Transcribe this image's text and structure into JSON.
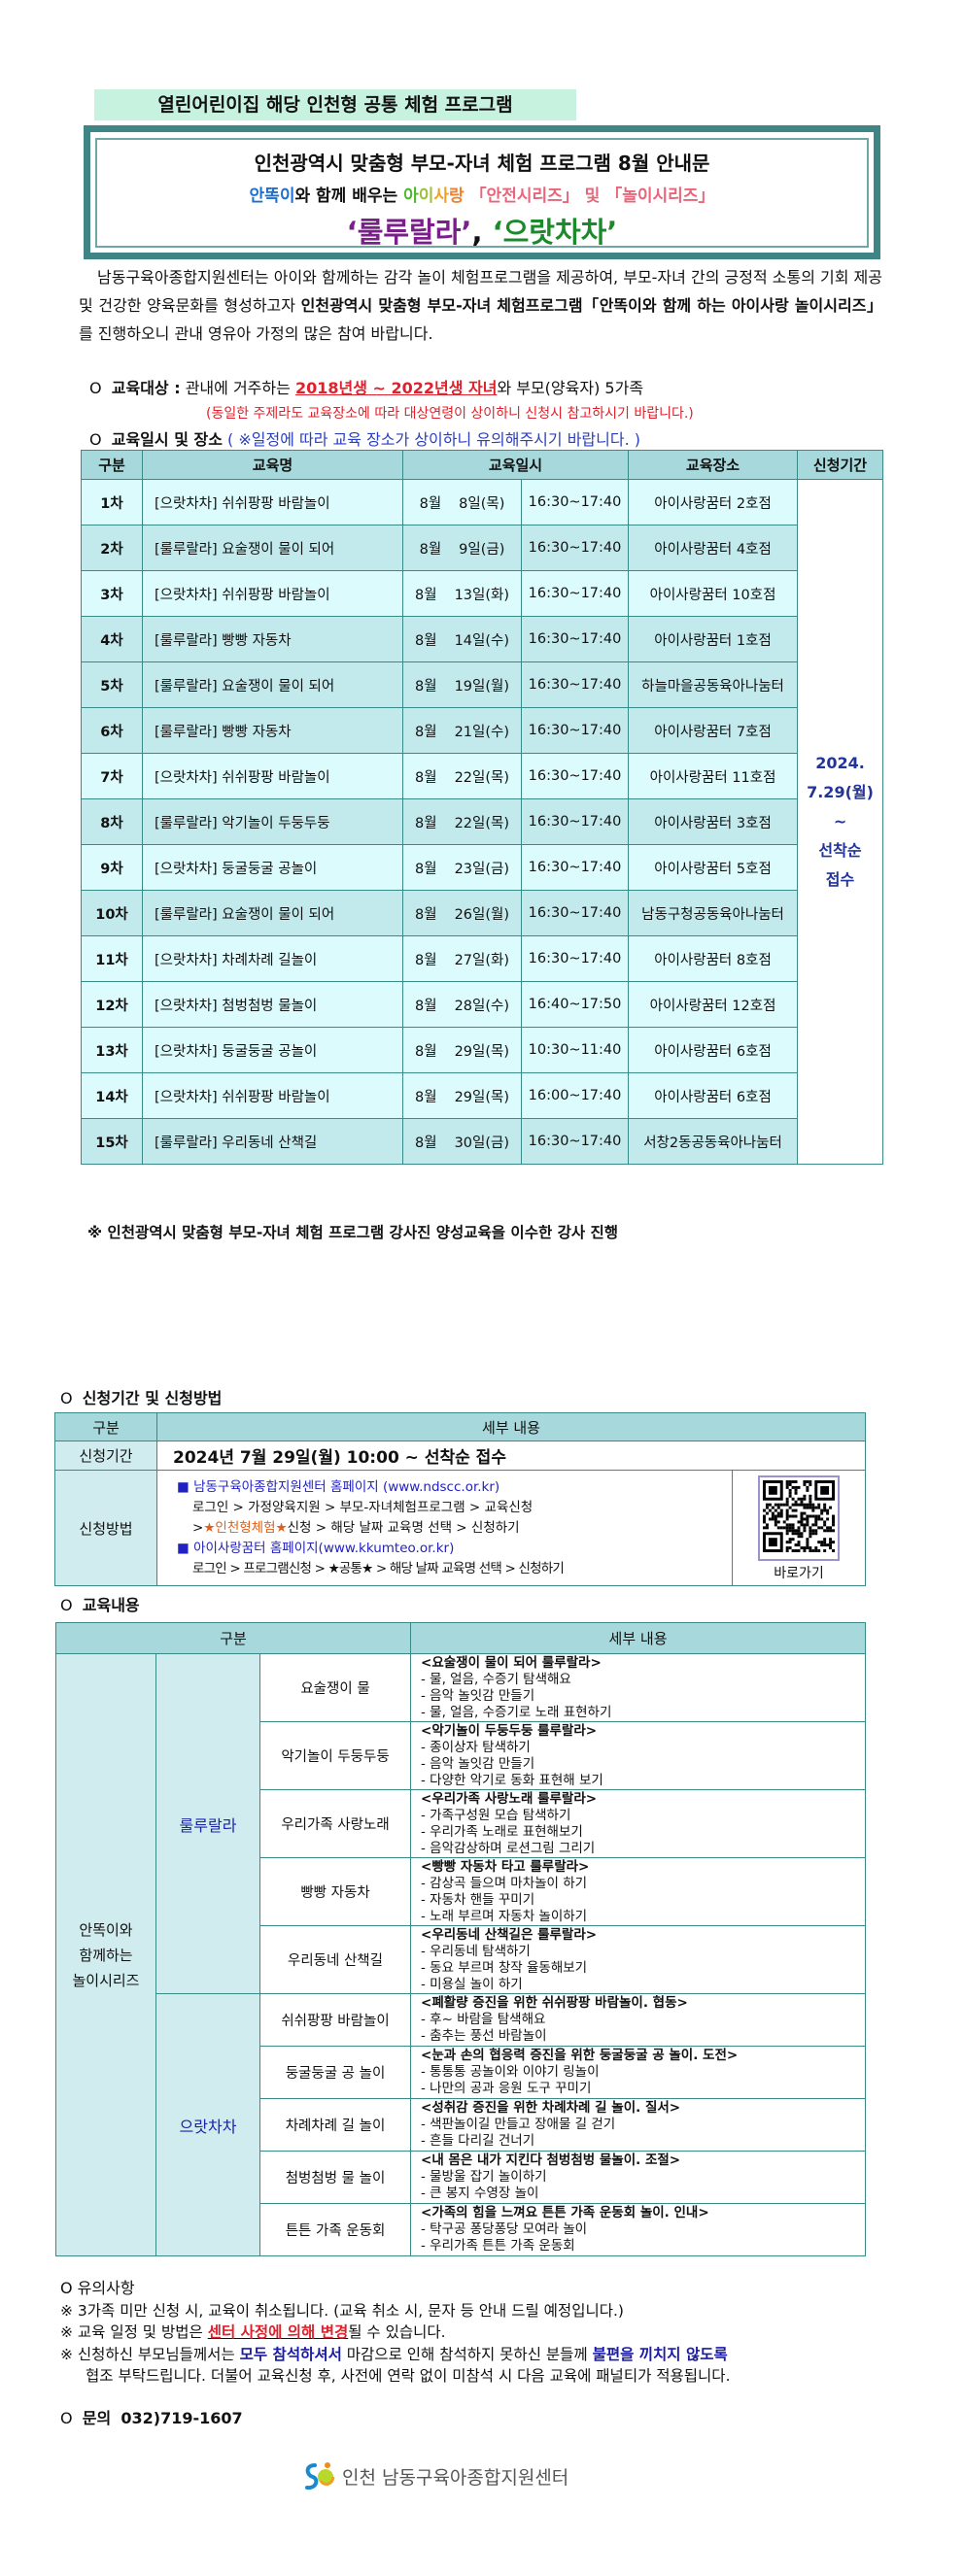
{
  "header": {
    "label": "열린어린이집 해당 인천형 공통 체험 프로그램",
    "title": "인천광역시 맞춤형 부모-자녀 체험 프로그램 8월 안내문",
    "subtitle": {
      "a": "안똑이",
      "b": "와 함께 배우는 ",
      "c1": "아",
      "c2": "이",
      "c3": "사",
      "c4": "랑",
      "d": "「안전시리즈」 및 「놀이시리즈」"
    },
    "series": {
      "a": "‘룰루랄라’",
      "sep": ", ",
      "b": "‘으랏차차’"
    },
    "colors": {
      "blue": "#1f6fd0",
      "pink": "#e8657a",
      "purple": "#7a1f8a",
      "green": "#1a8a2a",
      "teal": "#3f8585",
      "header_cyan": "#a7d9dc"
    }
  },
  "intro": {
    "p1": "남동구육아종합지원센터는 아이와 함께하는 감각 놀이 체험프로그램을 제공하여, 부모-자녀 간의 긍정적 소통의 기회 제공 및 건강한 양육문화를 형성하고자 ",
    "p2": "인천광역시 맞춤형 부모-자녀 체험프로그램「안똑이와 함께 하는 아이사랑 놀이시리즈」",
    "p3": "를 진행하오니 관내 영유아 가정의 많은 참여 바랍니다."
  },
  "target": {
    "bullet": "O",
    "label": "교육대상 :",
    "pre": " 관내에 거주하는 ",
    "highlight": "2018년생 ~ 2022년생 자녀",
    "post": "와 부모(양육자) 5가족",
    "note": "(동일한 주제라도 교육장소에 따라 대상연령이 상이하니 신청시 참고하시기 바랍니다.)"
  },
  "schedule": {
    "bullet": "O",
    "heading": "교육일시 및 장소",
    "note": " ( ※일정에 따라 교육 장소가 상이하니 유의해주시기 바랍니다. )",
    "columns": [
      "구분",
      "교육명",
      "교육일시",
      "교육장소",
      "신청기간"
    ],
    "period": [
      "2024.",
      "7.29(월)",
      "~",
      "선착순",
      "접수"
    ],
    "rows": [
      {
        "no": "1차",
        "name": "[으랏차차] 쉬쉬팡팡 바람놀이",
        "month": "8월",
        "day": "8일(목)",
        "time": "16:30~17:40",
        "place": "아이사랑꿈터 2호점"
      },
      {
        "no": "2차",
        "name": "[룰루랄라] 요술쟁이 물이 되어",
        "month": "8월",
        "day": "9일(금)",
        "time": "16:30~17:40",
        "place": "아이사랑꿈터 4호점"
      },
      {
        "no": "3차",
        "name": "[으랏차차] 쉬쉬팡팡 바람놀이",
        "month": "8월",
        "day": "13일(화)",
        "time": "16:30~17:40",
        "place": "아이사랑꿈터 10호점"
      },
      {
        "no": "4차",
        "name": "[룰루랄라] 빵빵 자동차",
        "month": "8월",
        "day": "14일(수)",
        "time": "16:30~17:40",
        "place": "아이사랑꿈터 1호점"
      },
      {
        "no": "5차",
        "name": "[룰루랄라] 요술쟁이 물이 되어",
        "month": "8월",
        "day": "19일(월)",
        "time": "16:30~17:40",
        "place": "하늘마을공동육아나눔터"
      },
      {
        "no": "6차",
        "name": "[룰루랄라] 빵빵 자동차",
        "month": "8월",
        "day": "21일(수)",
        "time": "16:30~17:40",
        "place": "아이사랑꿈터 7호점"
      },
      {
        "no": "7차",
        "name": "[으랏차차] 쉬쉬팡팡 바람놀이",
        "month": "8월",
        "day": "22일(목)",
        "time": "16:30~17:40",
        "place": "아이사랑꿈터 11호점"
      },
      {
        "no": "8차",
        "name": "[룰루랄라] 악기놀이 두둥두둥",
        "month": "8월",
        "day": "22일(목)",
        "time": "16:30~17:40",
        "place": "아이사랑꿈터 3호점"
      },
      {
        "no": "9차",
        "name": "[으랏차차] 둥굴둥굴 공놀이",
        "month": "8월",
        "day": "23일(금)",
        "time": "16:30~17:40",
        "place": "아이사랑꿈터 5호점"
      },
      {
        "no": "10차",
        "name": "[룰루랄라] 요술쟁이 물이 되어",
        "month": "8월",
        "day": "26일(월)",
        "time": "16:30~17:40",
        "place": "남동구청공동육아나눔터"
      },
      {
        "no": "11차",
        "name": "[으랏차차] 차례차례 길놀이",
        "month": "8월",
        "day": "27일(화)",
        "time": "16:30~17:40",
        "place": "아이사랑꿈터 8호점"
      },
      {
        "no": "12차",
        "name": "[으랏차차] 첨벙첨벙 물놀이",
        "month": "8월",
        "day": "28일(수)",
        "time": "16:40~17:50",
        "place": "아이사랑꿈터 12호점"
      },
      {
        "no": "13차",
        "name": "[으랏차차] 둥굴둥굴 공놀이",
        "month": "8월",
        "day": "29일(목)",
        "time": "10:30~11:40",
        "place": "아이사랑꿈터 6호점"
      },
      {
        "no": "14차",
        "name": "[으랏차차] 쉬쉬팡팡 바람놀이",
        "month": "8월",
        "day": "29일(목)",
        "time": "16:00~17:40",
        "place": "아이사랑꿈터 6호점"
      },
      {
        "no": "15차",
        "name": "[룰루랄라] 우리동네 산책길",
        "month": "8월",
        "day": "30일(금)",
        "time": "16:30~17:40",
        "place": "서창2동공동육아나눔터"
      }
    ]
  },
  "instructor_note": "※ 인천광역시 맞춤형 부모-자녀 체험 프로그램 강사진 양성교육을 이수한 강사 진행",
  "apply": {
    "bullet": "O",
    "heading": "신청기간 및 신청방법",
    "col_category": "구분",
    "col_detail": "세부 내용",
    "period_label": "신청기간",
    "period_value": "2024년 7월 29일(월) 10:00 ~ 선착순 접수",
    "method_label": "신청방법",
    "method": {
      "site1": "남동구육아종합지원센터 홈페이지",
      "site1_url": "(www.ndscc.or.kr)",
      "path1a": "로그인 > 가정양육지원 > 부모-자녀체험프로그램 > 교육신청",
      "path1b_pre": ">",
      "path1b_hl": "★인천형체험★",
      "path1b_post": "신청 > 해당 날짜 교육명 선택 > 신청하기",
      "site2": "아이사랑꿈터 홈페이지(www.kkumteo.or.kr)",
      "path2": "로그인 > 프로그램신청 > ★공통★ > 해당 날짜 교육명 선택 > 신청하기"
    },
    "qr_label": "바로가기"
  },
  "content": {
    "bullet": "O",
    "heading": "교육내용",
    "col_category": "구분",
    "col_detail": "세부 내용",
    "group": "안똑이와\n함께하는\n놀이시리즈",
    "series": [
      {
        "name": "룰루랄라",
        "items": [
          {
            "topic": "요술쟁이 물",
            "details": [
              "<요술쟁이 물이 되어 룰루랄라>",
              "- 물, 얼음, 수증기 탐색해요",
              "- 음악 놀잇감 만들기",
              "- 물, 얼음, 수증기로 노래 표현하기"
            ]
          },
          {
            "topic": "악기놀이 두둥두둥",
            "details": [
              "<악기놀이 두둥두둥 룰루랄라>",
              "- 종이상자 탐색하기",
              "- 음악 놀잇감 만들기",
              "- 다양한 악기로 동화 표현해 보기"
            ]
          },
          {
            "topic": "우리가족 사랑노래",
            "details": [
              "<우리가족 사랑노래 룰루랄라>",
              "- 가족구성원 모습 탐색하기",
              "- 우리가족 노래로 표현해보기",
              "- 음악감상하며 로션그림 그리기"
            ]
          },
          {
            "topic": "빵빵 자동차",
            "details": [
              "<빵빵 자동차 타고 룰루랄라>",
              "- 감상곡 들으며 마차놀이 하기",
              "- 자동차 핸들 꾸미기",
              "- 노래 부르며 자동차 놀이하기"
            ]
          },
          {
            "topic": "우리동네 산책길",
            "details": [
              "<우리동네 산책길은 룰루랄라>",
              "- 우리동네 탐색하기",
              "- 동요 부르며 창작 율동해보기",
              "- 미용실 놀이 하기"
            ]
          }
        ]
      },
      {
        "name": "으랏차차",
        "items": [
          {
            "topic": "쉬쉬팡팡 바람놀이",
            "details": [
              "<폐활량 증진을 위한 쉬쉬팡팡 바람놀이. 협동>",
              "- 후~ 바람을 탐색해요",
              "- 춤추는 풍선 바람놀이"
            ]
          },
          {
            "topic": "둥굴둥굴 공 놀이",
            "details": [
              "<눈과 손의 협응력 증진을 위한 둥굴둥굴 공 놀이. 도전>",
              "- 통통통 공놀이와 이야기 링놀이",
              "- 나만의 공과 응원 도구 꾸미기"
            ]
          },
          {
            "topic": "차례차례 길 놀이",
            "details": [
              "<성취감 증진을 위한 차례차례 길 놀이. 질서>",
              "- 색판놀이길 만들고 장애물 길 걷기",
              "- 흔들 다리길 건너기"
            ]
          },
          {
            "topic": "첨벙첨벙 물 놀이",
            "details": [
              "<내 몸은 내가 지킨다 첨벙첨벙 물놀이. 조절>",
              "- 물방울 잡기 놀이하기",
              "- 큰 봉지 수영장 놀이"
            ]
          },
          {
            "topic": "튼튼 가족 운동회",
            "details": [
              "<가족의 힘을 느껴요 튼튼 가족 운동회 놀이. 인내>",
              "- 탁구공 퐁당퐁당 모여라 놀이",
              "- 우리가족 튼튼 가족 운동회"
            ]
          }
        ]
      }
    ]
  },
  "notes": {
    "heading": "O 유의사항",
    "n1": "※ 3가족 미만 신청 시, 교육이 취소됩니다. (교육 취소 시, 문자 등 안내 드릴 예정입니다.)",
    "n2_pre": "※ 교육 일정 및 방법은 ",
    "n2_hl": "센터 사정에 의해 변경",
    "n2_post": "될 수 있습니다.",
    "n3_a": "※ 신청하신 부모님들께서는 ",
    "n3_b": "모두 참석하셔서",
    "n3_c": " 마감으로 인해 참석하지 못하신 분들께 ",
    "n3_d": "불편을 끼치지 않도록",
    "n3_e": "협조 부탁드립니다. 더불어 교육신청 후, 사전에 연락 없이 미참석 시 다음 교육에 패널티가 적용됩니다."
  },
  "contact": {
    "bullet": "O",
    "label": "문의",
    "phone": "032)719-1607"
  },
  "footer": {
    "logo_text": "인천 남동구육아종합지원센터"
  }
}
